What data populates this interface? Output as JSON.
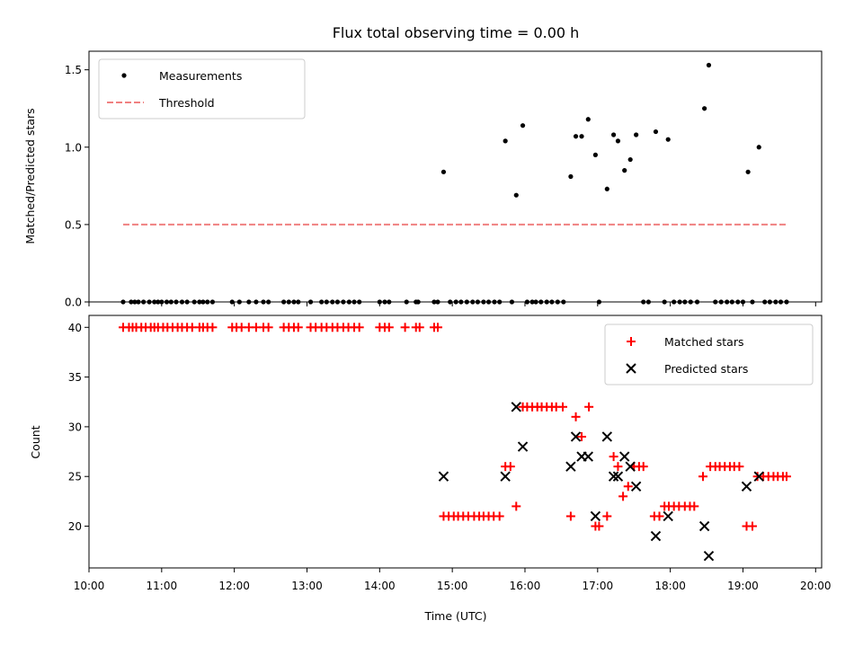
{
  "chart_data": [
    {
      "type": "scatter",
      "title": "Flux total observing time = 0.00 h",
      "xlabel": "",
      "ylabel": "Matched/Predicted stars",
      "ylim": [
        0,
        1.62
      ],
      "yticks": [
        "0.0",
        "0.5",
        "1.0",
        "1.5"
      ],
      "ytick_values": [
        0,
        0.5,
        1.0,
        1.5
      ],
      "xlim": [
        10.0,
        20.083
      ],
      "legend": {
        "position": "top-left"
      },
      "series": [
        {
          "name": "Measurements",
          "color": "#000000",
          "marker": "dot",
          "x": [
            10.47,
            10.58,
            10.63,
            10.68,
            10.75,
            10.83,
            10.9,
            10.95,
            11.0,
            11.07,
            11.13,
            11.2,
            11.28,
            11.35,
            11.45,
            11.52,
            11.57,
            11.63,
            11.7,
            11.97,
            12.07,
            12.2,
            12.3,
            12.4,
            12.47,
            12.68,
            12.75,
            12.82,
            12.88,
            13.05,
            13.2,
            13.27,
            13.35,
            13.42,
            13.5,
            13.58,
            13.65,
            13.72,
            14.0,
            14.07,
            14.13,
            14.37,
            14.5,
            14.53,
            14.75,
            14.8,
            14.88,
            14.97,
            15.05,
            15.12,
            15.2,
            15.28,
            15.35,
            15.43,
            15.5,
            15.58,
            15.65,
            15.73,
            15.82,
            15.88,
            15.97,
            16.03,
            16.1,
            16.15,
            16.22,
            16.3,
            16.37,
            16.45,
            16.53,
            16.63,
            16.7,
            16.78,
            16.87,
            16.97,
            17.02,
            17.13,
            17.22,
            17.28,
            17.37,
            17.45,
            17.53,
            17.63,
            17.7,
            17.8,
            17.92,
            17.97,
            18.05,
            18.13,
            18.2,
            18.28,
            18.37,
            18.47,
            18.53,
            18.62,
            18.7,
            18.78,
            18.85,
            18.93,
            19.0,
            19.07,
            19.13,
            19.22,
            19.3,
            19.37,
            19.45,
            19.52,
            19.6
          ],
          "y": [
            0,
            0,
            0,
            0,
            0,
            0,
            0,
            0,
            0,
            0,
            0,
            0,
            0,
            0,
            0,
            0,
            0,
            0,
            0,
            0,
            0,
            0,
            0,
            0,
            0,
            0,
            0,
            0,
            0,
            0,
            0,
            0,
            0,
            0,
            0,
            0,
            0,
            0,
            0,
            0,
            0,
            0,
            0,
            0,
            0,
            0,
            0.84,
            0,
            0,
            0,
            0,
            0,
            0,
            0,
            0,
            0,
            0,
            1.04,
            0,
            0.69,
            1.14,
            0,
            0,
            0,
            0,
            0,
            0,
            0,
            0,
            0.81,
            1.07,
            1.07,
            1.18,
            0.95,
            0,
            0.73,
            1.08,
            1.04,
            0.85,
            0.92,
            1.08,
            0,
            0,
            1.1,
            0,
            1.05,
            0,
            0,
            0,
            0,
            0,
            1.25,
            1.53,
            0,
            0,
            0,
            0,
            0,
            0,
            0.84,
            0,
            1.0,
            0,
            0,
            0,
            0,
            0
          ]
        },
        {
          "name": "Threshold",
          "color": "#f08080",
          "style": "dashed",
          "x": [
            10.47,
            19.6
          ],
          "y": [
            0.5,
            0.5
          ]
        }
      ]
    },
    {
      "type": "scatter",
      "title": "",
      "xlabel": "Time (UTC)",
      "ylabel": "Count",
      "ylim": [
        15.8,
        41.2
      ],
      "yticks": [
        "20",
        "25",
        "30",
        "35",
        "40"
      ],
      "ytick_values": [
        20,
        25,
        30,
        35,
        40
      ],
      "xlim": [
        10.0,
        20.083
      ],
      "xticks": [
        "10:00",
        "11:00",
        "12:00",
        "13:00",
        "14:00",
        "15:00",
        "16:00",
        "17:00",
        "18:00",
        "19:00",
        "20:00"
      ],
      "xtick_values": [
        10,
        11,
        12,
        13,
        14,
        15,
        16,
        17,
        18,
        19,
        20
      ],
      "legend": {
        "position": "top-right"
      },
      "series": [
        {
          "name": "Matched stars",
          "color": "#ff0000",
          "marker": "plus",
          "x": [
            10.47,
            10.55,
            10.6,
            10.65,
            10.72,
            10.78,
            10.85,
            10.9,
            10.95,
            11.02,
            11.08,
            11.15,
            11.22,
            11.28,
            11.35,
            11.42,
            11.52,
            11.57,
            11.63,
            11.7,
            11.97,
            12.03,
            12.1,
            12.2,
            12.3,
            12.4,
            12.47,
            12.68,
            12.75,
            12.82,
            12.88,
            13.05,
            13.12,
            13.2,
            13.27,
            13.35,
            13.42,
            13.5,
            13.57,
            13.65,
            13.72,
            14.0,
            14.07,
            14.13,
            14.35,
            14.5,
            14.55,
            14.75,
            14.8,
            14.88,
            14.95,
            15.02,
            15.08,
            15.15,
            15.22,
            15.3,
            15.37,
            15.43,
            15.5,
            15.57,
            15.65,
            15.73,
            15.8,
            15.88,
            15.97,
            16.03,
            16.1,
            16.17,
            16.23,
            16.3,
            16.37,
            16.43,
            16.52,
            16.63,
            16.7,
            16.78,
            16.88,
            16.97,
            17.02,
            17.13,
            17.22,
            17.28,
            17.35,
            17.42,
            17.5,
            17.57,
            17.63,
            17.78,
            17.85,
            17.92,
            17.98,
            18.05,
            18.12,
            18.2,
            18.27,
            18.33,
            18.45,
            18.55,
            18.62,
            18.68,
            18.75,
            18.82,
            18.88,
            18.95,
            19.05,
            19.13,
            19.2,
            19.28,
            19.35,
            19.42,
            19.48,
            19.55,
            19.6
          ],
          "y": [
            40,
            40,
            40,
            40,
            40,
            40,
            40,
            40,
            40,
            40,
            40,
            40,
            40,
            40,
            40,
            40,
            40,
            40,
            40,
            40,
            40,
            40,
            40,
            40,
            40,
            40,
            40,
            40,
            40,
            40,
            40,
            40,
            40,
            40,
            40,
            40,
            40,
            40,
            40,
            40,
            40,
            40,
            40,
            40,
            40,
            40,
            40,
            40,
            40,
            21,
            21,
            21,
            21,
            21,
            21,
            21,
            21,
            21,
            21,
            21,
            21,
            26,
            26,
            22,
            32,
            32,
            32,
            32,
            32,
            32,
            32,
            32,
            32,
            21,
            31,
            29,
            32,
            20,
            20,
            21,
            27,
            26,
            23,
            24,
            26,
            26,
            26,
            21,
            21,
            22,
            22,
            22,
            22,
            22,
            22,
            22,
            25,
            26,
            26,
            26,
            26,
            26,
            26,
            26,
            20,
            20,
            25,
            25,
            25,
            25,
            25,
            25,
            25
          ]
        },
        {
          "name": "Predicted stars",
          "color": "#000000",
          "marker": "x",
          "x": [
            14.88,
            15.73,
            15.88,
            15.97,
            16.63,
            16.7,
            16.78,
            16.87,
            16.97,
            17.13,
            17.22,
            17.28,
            17.37,
            17.45,
            17.53,
            17.8,
            17.97,
            18.47,
            18.53,
            19.05,
            19.22
          ],
          "y": [
            25,
            25,
            32,
            28,
            26,
            29,
            27,
            27,
            21,
            29,
            25,
            25,
            27,
            26,
            24,
            19,
            21,
            20,
            17,
            24,
            25
          ]
        }
      ]
    }
  ]
}
